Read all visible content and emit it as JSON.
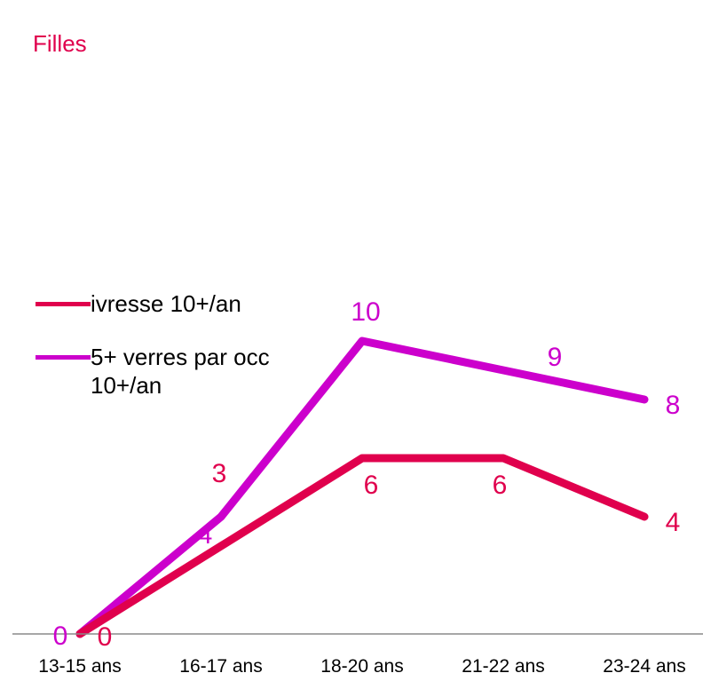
{
  "title": "Filles",
  "chart_data": {
    "type": "line",
    "categories": [
      "13-15 ans",
      "16-17 ans",
      "18-20 ans",
      "21-22 ans",
      "23-24 ans"
    ],
    "series": [
      {
        "name": "ivresse 10+/an",
        "color": "#e0004d",
        "values": [
          0,
          3,
          6,
          6,
          4
        ]
      },
      {
        "name": "5+ verres par occ 10+/an",
        "color": "#cc00cc",
        "values": [
          0,
          4,
          10,
          9,
          8
        ]
      }
    ],
    "ylim": [
      0,
      12
    ],
    "grid": false,
    "legend": "left",
    "data_labels": true
  }
}
